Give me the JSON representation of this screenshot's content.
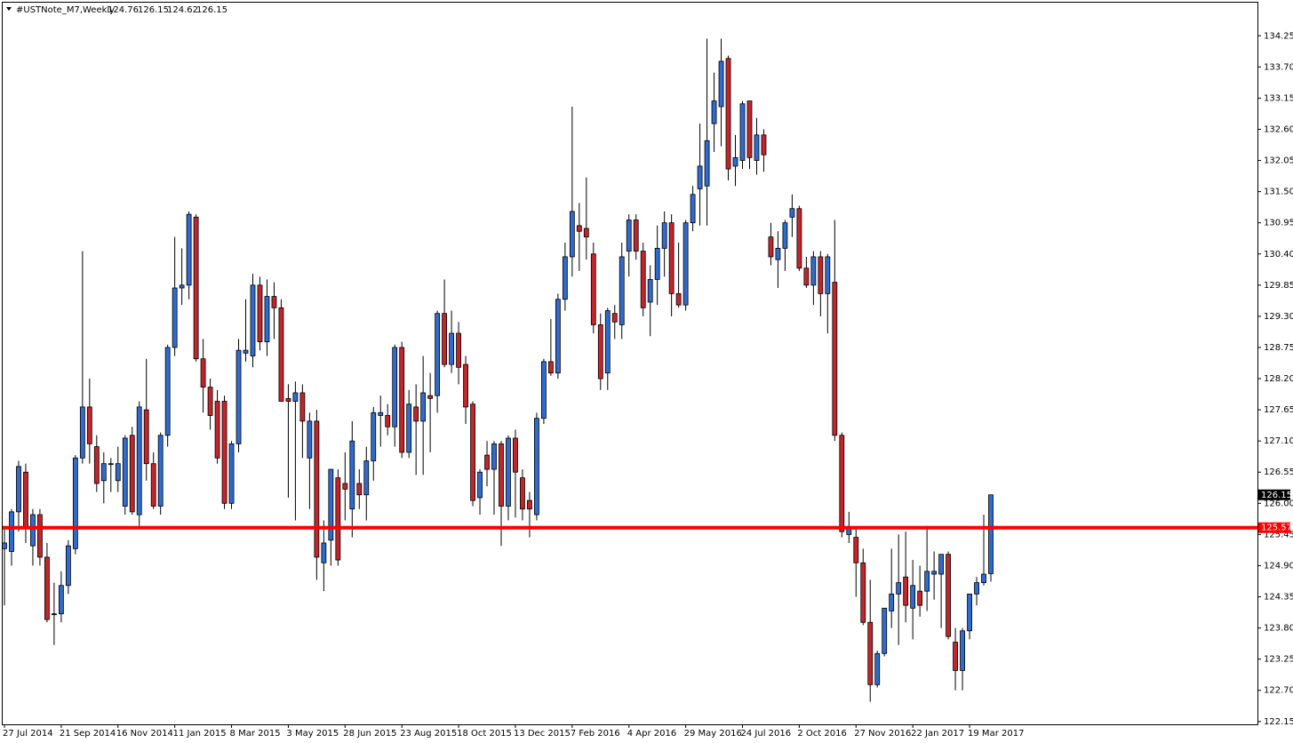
{
  "chart_data": {
    "type": "candlestick",
    "title": "#USTNote_M7,Weekly",
    "categories": [
      "27 Jul 2014",
      null,
      null,
      null,
      null,
      null,
      null,
      null,
      "21 Sep 2014",
      null,
      null,
      null,
      null,
      null,
      null,
      null,
      "16 Nov 2014",
      null,
      null,
      null,
      null,
      null,
      null,
      null,
      "11 Jan 2015",
      null,
      null,
      null,
      null,
      null,
      null,
      null,
      "8 Mar 2015",
      null,
      null,
      null,
      null,
      null,
      null,
      null,
      "3 May 2015",
      null,
      null,
      null,
      null,
      null,
      null,
      null,
      "28 Jun 2015",
      null,
      null,
      null,
      null,
      null,
      null,
      null,
      "23 Aug 2015",
      null,
      null,
      null,
      null,
      null,
      null,
      null,
      "18 Oct 2015",
      null,
      null,
      null,
      null,
      null,
      null,
      null,
      "13 Dec 2015",
      null,
      null,
      null,
      null,
      null,
      null,
      null,
      "7 Feb 2016",
      null,
      null,
      null,
      null,
      null,
      null,
      null,
      "4 Apr 2016",
      null,
      null,
      null,
      null,
      null,
      null,
      null,
      "29 May 2016",
      null,
      null,
      null,
      null,
      null,
      null,
      null,
      "24 Jul 2016",
      null,
      null,
      null,
      null,
      null,
      null,
      null,
      "2 Oct 2016",
      null,
      null,
      null,
      null,
      null,
      null,
      null,
      "27 Nov 2016",
      null,
      null,
      null,
      null,
      null,
      null,
      null,
      "22 Jan 2017",
      null,
      null,
      null,
      null,
      null,
      null,
      null,
      "19 Mar 2017",
      null,
      null,
      null
    ],
    "open": [
      125.2,
      125.15,
      125.85,
      126.55,
      125.25,
      125.8,
      125.05,
      124.05,
      124.05,
      124.55,
      125.2,
      126.8,
      127.7,
      127.0,
      126.4,
      126.7,
      126.4,
      125.95,
      127.2,
      125.8,
      127.65,
      126.7,
      125.95,
      127.2,
      128.75,
      129.8,
      129.85,
      131.05,
      128.55,
      128.05,
      127.8,
      127.8,
      126.0,
      127.05,
      128.65,
      128.6,
      129.85,
      128.85,
      129.65,
      129.45,
      127.85,
      127.8,
      127.95,
      126.8,
      127.45,
      124.95,
      125.35,
      126.45,
      126.35,
      125.9,
      126.35,
      126.15,
      126.75,
      127.55,
      127.55,
      127.35,
      128.75,
      126.9,
      127.7,
      127.45,
      127.9,
      127.9,
      129.35,
      128.45,
      129.0,
      128.45,
      127.75,
      126.1,
      126.85,
      126.6,
      127.05,
      125.95,
      127.15,
      126.45,
      126.05,
      125.8,
      127.5,
      128.5,
      128.3,
      129.6,
      130.35,
      130.9,
      130.85,
      130.4,
      129.15,
      128.3,
      129.35,
      129.15,
      130.45,
      131.0,
      130.45,
      129.55,
      129.95,
      130.5,
      130.95,
      129.7,
      129.5,
      130.95,
      131.55,
      131.6,
      132.7,
      133.0,
      133.85,
      131.95,
      132.05,
      133.1,
      132.05,
      132.5,
      130.7,
      130.3,
      130.5,
      131.05,
      131.2,
      130.15,
      129.85,
      130.35,
      129.7,
      129.9,
      127.2,
      125.45,
      125.4,
      124.95,
      123.9,
      122.8,
      123.35,
      124.1,
      124.4,
      124.7,
      124.15,
      124.45,
      124.45,
      124.75,
      124.75,
      125.1,
      123.55,
      123.05,
      123.75,
      124.4,
      124.6,
      124.76
    ],
    "high": [
      125.6,
      125.9,
      126.75,
      126.7,
      125.9,
      125.9,
      125.3,
      124.6,
      124.8,
      125.35,
      126.85,
      130.45,
      128.2,
      127.2,
      126.9,
      126.8,
      127.0,
      127.2,
      127.35,
      127.8,
      128.55,
      126.9,
      127.25,
      128.8,
      130.7,
      130.5,
      131.15,
      131.1,
      128.9,
      128.2,
      128.0,
      127.9,
      127.1,
      128.9,
      129.6,
      130.05,
      130.0,
      129.95,
      129.9,
      129.6,
      128.1,
      128.15,
      128.1,
      127.6,
      127.65,
      125.7,
      126.6,
      126.6,
      126.9,
      127.45,
      126.6,
      127.0,
      127.7,
      127.9,
      127.75,
      128.8,
      128.85,
      128.0,
      128.1,
      128.6,
      128.3,
      129.4,
      129.95,
      129.4,
      129.2,
      128.6,
      127.8,
      126.6,
      127.1,
      127.1,
      127.1,
      127.2,
      127.3,
      126.6,
      126.2,
      127.6,
      128.55,
      129.25,
      129.7,
      130.6,
      133.0,
      131.3,
      131.75,
      130.6,
      129.35,
      129.45,
      129.5,
      130.6,
      131.1,
      131.1,
      130.6,
      130.2,
      130.9,
      131.15,
      131.1,
      130.6,
      131.0,
      131.6,
      132.7,
      134.2,
      133.6,
      134.2,
      133.9,
      132.5,
      133.1,
      133.1,
      132.8,
      132.6,
      130.95,
      130.8,
      131.0,
      131.45,
      131.25,
      130.35,
      130.45,
      130.45,
      130.4,
      131.0,
      127.25,
      125.85,
      125.6,
      125.2,
      124.65,
      123.4,
      124.15,
      125.2,
      125.45,
      125.5,
      125.0,
      124.9,
      125.6,
      125.15,
      125.1,
      125.15,
      123.8,
      123.8,
      124.4,
      124.7,
      125.8,
      126.15
    ],
    "low": [
      124.2,
      124.9,
      125.5,
      125.3,
      124.9,
      124.9,
      123.9,
      123.5,
      123.9,
      124.4,
      125.1,
      126.7,
      126.7,
      126.2,
      126.0,
      126.2,
      126.2,
      125.8,
      125.8,
      125.6,
      126.4,
      125.9,
      125.8,
      127.0,
      128.6,
      129.5,
      129.6,
      128.5,
      127.6,
      127.3,
      126.7,
      125.9,
      125.9,
      126.9,
      128.5,
      128.4,
      128.7,
      128.6,
      128.9,
      127.8,
      126.1,
      125.7,
      126.8,
      125.9,
      124.65,
      124.45,
      124.9,
      124.9,
      125.7,
      125.4,
      125.9,
      125.7,
      126.4,
      127.0,
      127.2,
      127.0,
      126.8,
      126.8,
      126.5,
      126.5,
      126.9,
      127.6,
      128.4,
      128.3,
      128.1,
      127.4,
      125.95,
      125.8,
      126.3,
      125.8,
      125.25,
      125.7,
      125.75,
      125.7,
      125.4,
      125.7,
      127.4,
      128.25,
      128.2,
      129.4,
      130.0,
      130.1,
      130.3,
      129.0,
      128.0,
      128.0,
      128.9,
      128.9,
      130.0,
      130.3,
      129.3,
      128.95,
      129.5,
      130.0,
      129.3,
      129.45,
      129.4,
      130.8,
      130.9,
      130.9,
      132.2,
      132.3,
      131.7,
      131.6,
      131.9,
      131.9,
      131.8,
      131.85,
      130.2,
      129.8,
      130.1,
      130.7,
      130.1,
      129.8,
      129.5,
      129.3,
      129.0,
      127.1,
      125.4,
      125.3,
      124.35,
      123.85,
      122.5,
      122.75,
      123.3,
      123.8,
      123.5,
      123.9,
      123.6,
      124.0,
      124.1,
      124.3,
      123.8,
      123.6,
      122.7,
      122.7,
      123.6,
      124.2,
      124.55,
      124.62
    ],
    "close": [
      125.3,
      125.85,
      126.65,
      125.55,
      125.8,
      125.05,
      123.95,
      124.05,
      124.55,
      125.25,
      126.8,
      127.7,
      127.05,
      126.35,
      126.7,
      126.7,
      126.7,
      127.15,
      125.85,
      127.7,
      126.7,
      125.95,
      127.2,
      128.75,
      129.8,
      129.85,
      131.1,
      128.55,
      128.05,
      127.55,
      126.8,
      126.0,
      127.05,
      128.7,
      128.7,
      129.85,
      128.85,
      129.65,
      129.45,
      127.8,
      127.8,
      127.95,
      127.45,
      127.45,
      125.05,
      125.3,
      126.6,
      125.0,
      126.25,
      127.1,
      126.15,
      126.75,
      127.6,
      127.6,
      127.35,
      128.75,
      126.9,
      127.75,
      127.45,
      127.95,
      127.85,
      129.35,
      128.45,
      129.0,
      128.4,
      127.7,
      126.05,
      126.55,
      126.6,
      127.05,
      125.95,
      127.15,
      126.55,
      125.9,
      125.9,
      127.5,
      128.5,
      128.3,
      129.6,
      130.35,
      131.15,
      130.8,
      130.7,
      129.15,
      128.2,
      129.4,
      129.2,
      130.35,
      131.0,
      130.45,
      129.45,
      129.95,
      130.5,
      130.95,
      129.7,
      129.5,
      130.95,
      131.45,
      131.95,
      132.4,
      133.1,
      133.8,
      131.9,
      132.1,
      133.05,
      132.1,
      132.5,
      132.15,
      130.35,
      130.5,
      130.95,
      131.2,
      130.15,
      129.85,
      130.35,
      129.7,
      130.35,
      127.2,
      125.5,
      125.55,
      124.95,
      123.9,
      122.8,
      123.35,
      124.15,
      124.4,
      124.6,
      124.2,
      124.55,
      124.2,
      124.8,
      124.8,
      125.1,
      123.65,
      123.05,
      123.75,
      124.4,
      124.6,
      124.75,
      126.15
    ],
    "up_color": "#2f6bd0",
    "down_color": "#c4252b",
    "hline": {
      "value": 125.57,
      "color": "#ff0000"
    },
    "ylim": [
      122.1,
      134.85
    ],
    "yticks": [
      122.15,
      {
        "value": 122.7,
        "label": "122.70"
      },
      123.25,
      {
        "value": 123.8,
        "label": "123.80"
      },
      124.35,
      {
        "value": 124.9,
        "label": "124.90"
      },
      125.45,
      {
        "value": 126.0,
        "label": "126.00"
      },
      126.55,
      {
        "value": 127.1,
        "label": "127.10"
      },
      127.65,
      {
        "value": 128.2,
        "label": "128.20"
      },
      128.75,
      {
        "value": 129.3,
        "label": "129.30"
      },
      129.85,
      {
        "value": 130.4,
        "label": "130.40"
      },
      130.95,
      {
        "value": 131.5,
        "label": "131.50"
      },
      132.05,
      {
        "value": 132.6,
        "label": "132.60"
      },
      133.15,
      {
        "value": 133.7,
        "label": "133.70"
      },
      134.25
    ],
    "grid": false
  }
}
